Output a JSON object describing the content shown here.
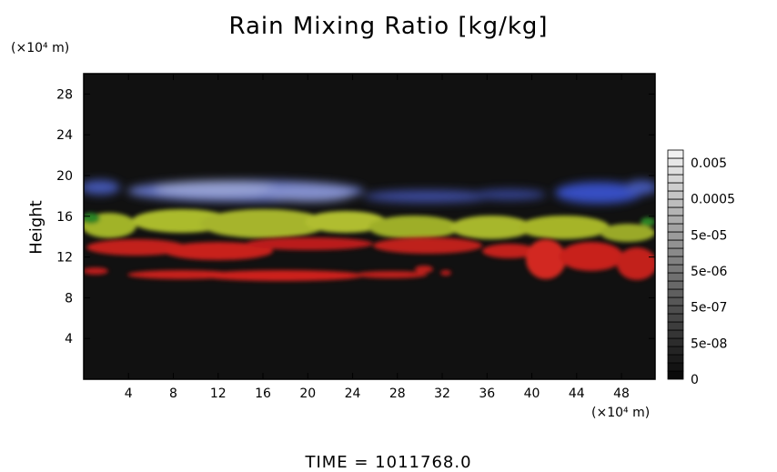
{
  "chart_data": {
    "type": "heatmap",
    "title": "Rain Mixing Ratio [kg/kg]",
    "ylabel": "Height",
    "x_unit": "(×10⁴ m)",
    "y_unit": "(×10⁴ m)",
    "x_ticks": [
      4,
      8,
      12,
      16,
      20,
      24,
      28,
      32,
      36,
      40,
      44,
      48
    ],
    "y_ticks": [
      4,
      8,
      12,
      16,
      20,
      24,
      28
    ],
    "xlim": [
      0,
      51
    ],
    "ylim": [
      0,
      30
    ],
    "grid": false,
    "background_color": "#111111",
    "colorbar": {
      "labels": [
        "0.005",
        "0.0005",
        "5e-05",
        "5e-06",
        "5e-07",
        "5e-08",
        "0"
      ],
      "placement": "right"
    },
    "layers": [
      {
        "color": "#6f7fd6",
        "height_range": [
          17.0,
          20.0
        ],
        "description_color": "blue"
      },
      {
        "color": "#b5c42e",
        "height_range": [
          13.5,
          17.0
        ],
        "description_color": "yellow-green"
      },
      {
        "color": "#d8231f",
        "height_range": [
          12.0,
          14.5
        ],
        "description_color": "red"
      },
      {
        "color": "#d8231f",
        "height_range": [
          9.5,
          11.0
        ],
        "description_color": "red"
      }
    ]
  },
  "footer": {
    "time_label": "TIME = 1011768.0"
  }
}
